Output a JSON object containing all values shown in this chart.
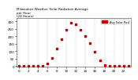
{
  "title": "Milwaukee Weather Solar Radiation Average\nper Hour\n(24 Hours)",
  "x_hours": [
    0,
    1,
    2,
    3,
    4,
    5,
    6,
    7,
    8,
    9,
    10,
    11,
    12,
    13,
    14,
    15,
    16,
    17,
    18,
    19,
    20,
    21,
    22,
    23
  ],
  "y_values": [
    0,
    0,
    0,
    0,
    0,
    2,
    18,
    55,
    115,
    180,
    245,
    290,
    280,
    245,
    200,
    155,
    95,
    40,
    8,
    1,
    0,
    0,
    0,
    0
  ],
  "dot_color": "#cc0000",
  "bg_color": "#ffffff",
  "grid_color": "#bbbbbb",
  "yticks": [
    0,
    50,
    100,
    150,
    200,
    250,
    300
  ],
  "xlim": [
    -0.5,
    23.5
  ],
  "ylim": [
    -5,
    320
  ],
  "legend_color": "#cc0000",
  "legend_label": "Avg Solar Rad",
  "title_fontsize": 3.0,
  "tick_fontsize": 3.0,
  "dot_size": 1.5
}
